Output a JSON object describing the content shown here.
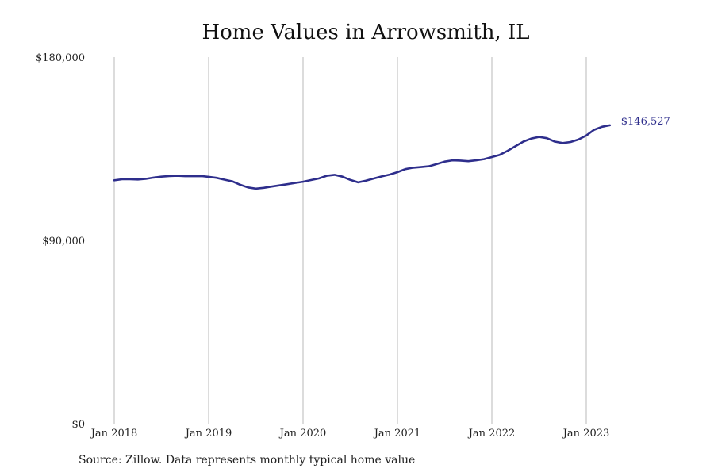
{
  "chart_data": {
    "type": "line",
    "title": "Home Values in Arrowsmith, IL",
    "xlabel": "",
    "ylabel": "",
    "ylim": [
      0,
      180000
    ],
    "x_ticks": [
      "Jan 2018",
      "Jan 2019",
      "Jan 2020",
      "Jan 2021",
      "Jan 2022",
      "Jan 2023"
    ],
    "y_ticks": [
      {
        "value": 0,
        "label": "$0"
      },
      {
        "value": 90000,
        "label": "$90,000"
      },
      {
        "value": 180000,
        "label": "$180,000"
      }
    ],
    "grid": {
      "vertical": true,
      "horizontal": false
    },
    "line_color": "#2e2e8c",
    "end_label": "$146,527",
    "series": [
      {
        "x": [
          "2018-01",
          "2018-02",
          "2018-03",
          "2018-04",
          "2018-05",
          "2018-06",
          "2018-07",
          "2018-08",
          "2018-09",
          "2018-10",
          "2018-11",
          "2018-12",
          "2019-01",
          "2019-02",
          "2019-03",
          "2019-04",
          "2019-05",
          "2019-06",
          "2019-07",
          "2019-08",
          "2019-09",
          "2019-10",
          "2019-11",
          "2019-12",
          "2020-01",
          "2020-02",
          "2020-03",
          "2020-04",
          "2020-05",
          "2020-06",
          "2020-07",
          "2020-08",
          "2020-09",
          "2020-10",
          "2020-11",
          "2020-12",
          "2021-01",
          "2021-02",
          "2021-03",
          "2021-04",
          "2021-05",
          "2021-06",
          "2021-07",
          "2021-08",
          "2021-09",
          "2021-10",
          "2021-11",
          "2021-12",
          "2022-01",
          "2022-02",
          "2022-03",
          "2022-04",
          "2022-05",
          "2022-06",
          "2022-07",
          "2022-08",
          "2022-09",
          "2022-10",
          "2022-11",
          "2022-12",
          "2023-01",
          "2023-02",
          "2023-03",
          "2023-04"
        ],
        "values": [
          119500,
          120000,
          120000,
          119900,
          120200,
          120800,
          121300,
          121600,
          121700,
          121500,
          121500,
          121600,
          121200,
          120700,
          119800,
          119000,
          117300,
          116000,
          115400,
          115800,
          116400,
          117000,
          117600,
          118200,
          118800,
          119600,
          120400,
          121700,
          122200,
          121300,
          119700,
          118500,
          119300,
          120400,
          121400,
          122300,
          123500,
          125000,
          125700,
          126000,
          126400,
          127500,
          128700,
          129300,
          129200,
          128900,
          129300,
          129900,
          130900,
          132000,
          134000,
          136300,
          138500,
          140000,
          140800,
          140200,
          138500,
          137800,
          138300,
          139500,
          141500,
          144300,
          145800,
          146527
        ]
      }
    ]
  },
  "source": "Source: Zillow. Data represents monthly typical home value"
}
